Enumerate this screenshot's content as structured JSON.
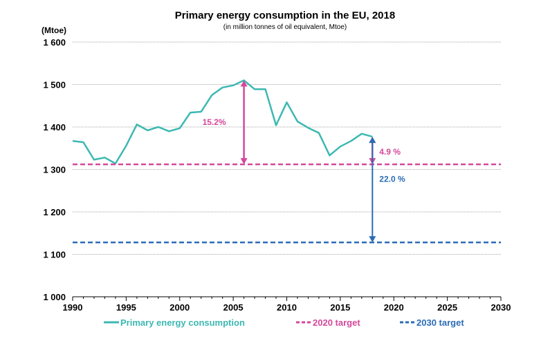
{
  "chart_data": {
    "type": "line",
    "title": "Primary energy consumption in the EU, 2018",
    "subtitle": "(in million tonnes of oil equivalent, Mtoe)",
    "ylabel": "(Mtoe)",
    "xlim": [
      1990,
      2030
    ],
    "ylim": [
      1000,
      1600
    ],
    "x_ticks": [
      "1990",
      "1995",
      "2000",
      "2005",
      "2010",
      "2015",
      "2020",
      "2025",
      "2030"
    ],
    "y_ticks": [
      "1 000",
      "1 100",
      "1 200",
      "1 300",
      "1 400",
      "1 500",
      "1 600"
    ],
    "grid": true,
    "legend_position": "bottom",
    "series": [
      {
        "name": "Primary energy consumption",
        "style": "solid",
        "color": "#3cb8b2",
        "x": [
          1990,
          1991,
          1992,
          1993,
          1994,
          1995,
          1996,
          1997,
          1998,
          1999,
          2000,
          2001,
          2002,
          2003,
          2004,
          2005,
          2006,
          2007,
          2008,
          2009,
          2010,
          2011,
          2012,
          2013,
          2014,
          2015,
          2016,
          2017,
          2018
        ],
        "values": [
          1367,
          1364,
          1323,
          1328,
          1314,
          1356,
          1406,
          1392,
          1400,
          1390,
          1397,
          1434,
          1436,
          1475,
          1493,
          1498,
          1510,
          1489,
          1489,
          1404,
          1458,
          1413,
          1398,
          1386,
          1333,
          1354,
          1367,
          1384,
          1377
        ]
      },
      {
        "name": "2020 target",
        "style": "dashed",
        "color": "#d4479b",
        "x": [
          1990,
          2030
        ],
        "values": [
          1312,
          1312
        ]
      },
      {
        "name": "2030 target",
        "style": "dashed",
        "color": "#2b6cb6",
        "x": [
          1990,
          2030
        ],
        "values": [
          1128,
          1128
        ]
      }
    ],
    "annotations": [
      {
        "label": "15.2%",
        "color": "#d4479b",
        "x": 2006,
        "from": 1510,
        "to": 1312
      },
      {
        "label": "4.9 %",
        "color": "#d4479b",
        "x": 2018,
        "from": 1377,
        "to": 1312
      },
      {
        "label": "22.0 %",
        "color": "#2b6cb6",
        "x": 2018,
        "from": 1377,
        "to": 1128
      }
    ]
  }
}
